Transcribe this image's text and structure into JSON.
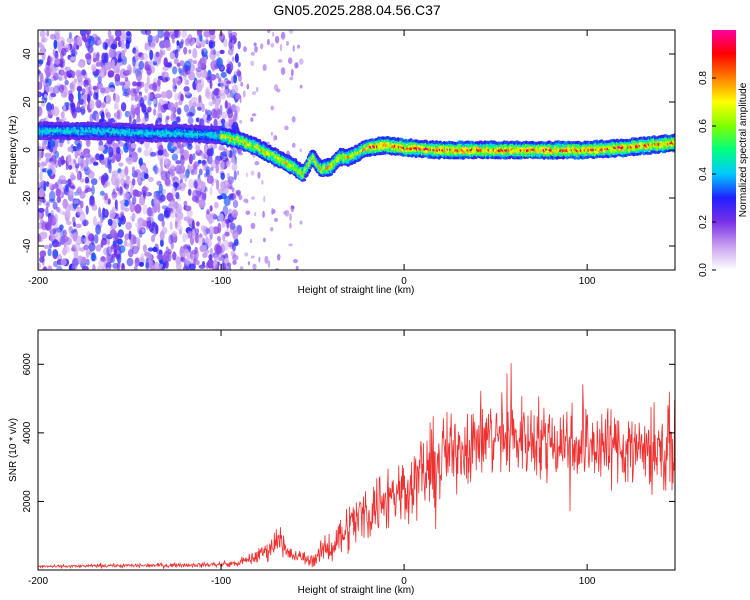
{
  "title": "GN05.2025.288.04.56.C37",
  "colors": {
    "snr_line": "#ee3030",
    "colormap": [
      "#ffffff",
      "#c8a0f0",
      "#7a30e8",
      "#2020ff",
      "#00c8ff",
      "#00ff80",
      "#80ff00",
      "#ffff00",
      "#ff8000",
      "#ff0000",
      "#ff00a0"
    ]
  },
  "chart_data": [
    {
      "type": "heatmap",
      "name": "spectrogram",
      "xlabel": "Height of straight line (km)",
      "ylabel": "Frequency (Hz)",
      "xlim": [
        -200,
        148
      ],
      "ylim": [
        -50,
        50
      ],
      "xticks": [
        "-200",
        "-100",
        "0",
        "100"
      ],
      "yticks": [
        "-40",
        "-20",
        "0",
        "20",
        "40"
      ],
      "ridge": {
        "x": [
          -200,
          -170,
          -140,
          -120,
          -100,
          -90,
          -80,
          -70,
          -60,
          -55,
          -50,
          -45,
          -40,
          -35,
          -30,
          -20,
          -10,
          0,
          20,
          40,
          60,
          80,
          100,
          120,
          148
        ],
        "y": [
          8,
          8,
          7,
          7,
          6,
          4,
          1,
          -3,
          -7,
          -10,
          -3,
          -8,
          -7,
          -3,
          -3,
          1,
          2,
          1,
          0,
          0,
          0,
          0,
          0,
          1,
          3
        ]
      },
      "colorbar": {
        "label": "Normalized spectral amplitude",
        "range": [
          0,
          1
        ],
        "ticks": [
          "0.0",
          "0.2",
          "0.4",
          "0.6",
          "0.8"
        ]
      }
    },
    {
      "type": "line",
      "name": "snr",
      "xlabel": "Height of straight line (km)",
      "ylabel": "SNR (10 * v/v)",
      "xlim": [
        -200,
        148
      ],
      "ylim": [
        0,
        7000
      ],
      "xticks": [
        "-200",
        "-100",
        "0",
        "100"
      ],
      "yticks": [
        "2000",
        "4000",
        "6000"
      ],
      "envelope": {
        "x": [
          -200,
          -150,
          -100,
          -90,
          -80,
          -72,
          -68,
          -64,
          -60,
          -50,
          -40,
          -30,
          -20,
          -10,
          0,
          10,
          20,
          30,
          40,
          50,
          60,
          80,
          100,
          120,
          148
        ],
        "mean": [
          100,
          130,
          160,
          200,
          400,
          700,
          1000,
          500,
          400,
          300,
          700,
          1300,
          1700,
          2100,
          2400,
          2800,
          3200,
          3600,
          3800,
          3900,
          3900,
          3800,
          3700,
          3600,
          3500
        ],
        "amp": [
          60,
          80,
          100,
          150,
          300,
          500,
          700,
          350,
          300,
          300,
          700,
          1100,
          1300,
          1500,
          1500,
          1700,
          1800,
          1800,
          1800,
          1700,
          1700,
          1700,
          1700,
          1800,
          1900
        ]
      }
    }
  ]
}
